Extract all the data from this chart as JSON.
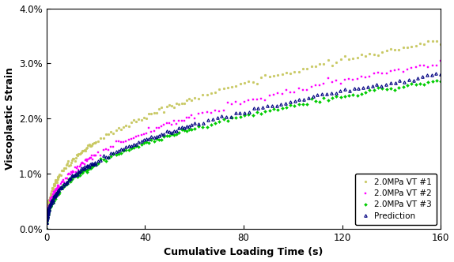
{
  "title": "",
  "xlabel": "Cumulative Loading Time (s)",
  "ylabel": "Viscoplastic Strain",
  "xlim": [
    0,
    160
  ],
  "ylim": [
    0,
    0.04
  ],
  "yticks": [
    0,
    0.01,
    0.02,
    0.03,
    0.04
  ],
  "ytick_labels": [
    "0.0%",
    "1.0%",
    "2.0%",
    "3.0%",
    "4.0%"
  ],
  "xticks": [
    0,
    40,
    80,
    120,
    160
  ],
  "series": {
    "vt1": {
      "label": "2.0MPa VT #1",
      "color": "#c8c860",
      "marker": "o",
      "markersize": 2.0,
      "final": 0.034
    },
    "vt2": {
      "label": "2.0MPa VT #2",
      "color": "#ff00ff",
      "marker": "s",
      "markersize": 2.0,
      "final": 0.03
    },
    "vt3": {
      "label": "2.0MPa VT #3",
      "color": "#00cc00",
      "marker": "D",
      "markersize": 2.0,
      "final": 0.027
    },
    "pred": {
      "label": "Prediction",
      "color": "#000080",
      "marker": "^",
      "markersize": 2.5,
      "final": 0.028
    }
  },
  "legend_loc": "lower right",
  "background_color": "#ffffff"
}
